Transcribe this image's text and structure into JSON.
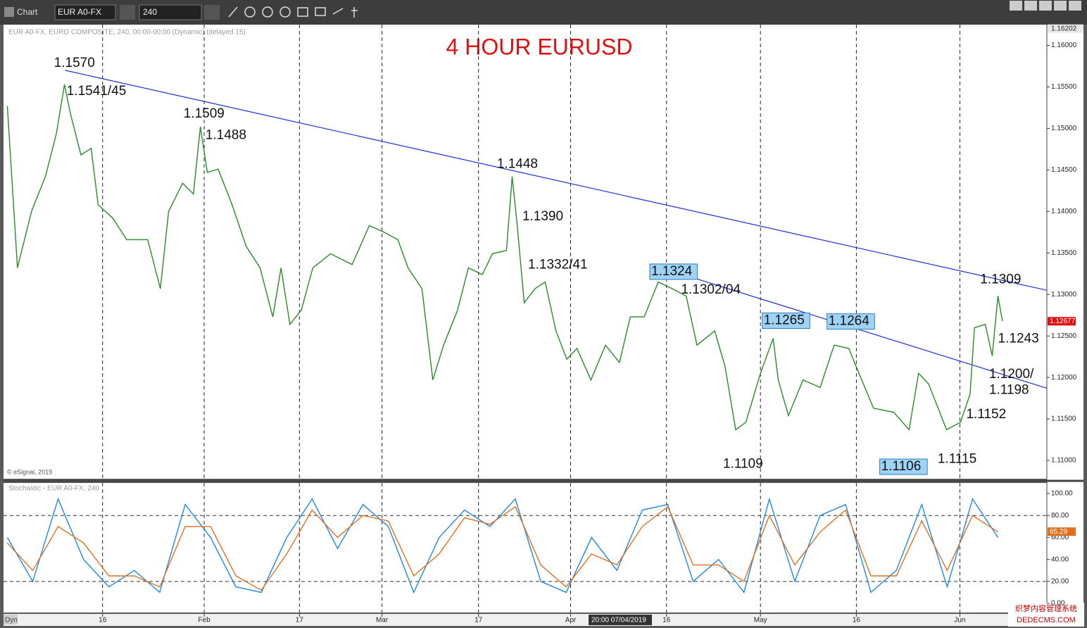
{
  "window": {
    "title": "Chart",
    "symbol": "EUR A0-FX",
    "interval": "240",
    "legend": "EUR A0-FX, EURO COMPOSITE, 240, 00:00-00:00 (Dynamic) (delayed 15)",
    "copyright": "© eSignal, 2019",
    "mode": "Dyn",
    "crosshair_time": "20:00 07/04/2019",
    "watermark": [
      "织梦内容管理系统",
      "DEDECMS.COM"
    ]
  },
  "chart_data": [
    {
      "type": "line",
      "title": "4 HOUR EURUSD",
      "color": "#2a8a2a",
      "x": [
        0,
        1.6,
        3.8,
        6.0,
        7.7,
        9.0,
        9.9,
        11.6,
        13.2,
        14.3,
        16.6,
        18.8,
        22.1,
        24.1,
        25.4,
        27.6,
        29.3,
        30.4,
        31.5,
        33.2,
        35.4,
        37.6,
        39.8,
        41.8,
        43.1,
        44.5,
        46.3,
        48.1,
        50.9,
        54.3,
        57.0,
        59.3,
        61.5,
        63.1,
        65.3,
        67.0,
        68.7,
        70.9,
        72.6,
        74.8,
        76.4,
        78.6,
        79.5,
        80.3,
        81.4,
        83.1,
        84.7,
        86.4,
        88.1,
        89.7,
        91.9,
        94.2,
        96.4,
        98.1,
        100.3,
        102.5,
        104.7,
        106.9,
        108.6,
        111.4,
        113.0,
        114.7,
        116.3,
        118.6,
        120.6,
        121.4,
        123.0,
        125.3,
        128.0,
        130.2,
        132.5,
        134.1,
        136.4,
        139.6,
        142.0,
        143.5,
        145.1,
        147.9,
        150.1,
        151.6,
        152.3,
        154.0,
        155.1,
        156.0,
        156.7
      ],
      "values": [
        1.1527,
        1.1332,
        1.14,
        1.1442,
        1.1493,
        1.1553,
        1.1519,
        1.1468,
        1.1476,
        1.1408,
        1.1392,
        1.1366,
        1.1366,
        1.1307,
        1.14,
        1.1434,
        1.1421,
        1.1502,
        1.1447,
        1.1451,
        1.1408,
        1.1358,
        1.1332,
        1.1273,
        1.1332,
        1.1264,
        1.1281,
        1.1332,
        1.1349,
        1.1336,
        1.1383,
        1.1375,
        1.1366,
        1.1332,
        1.1307,
        1.1197,
        1.1239,
        1.1281,
        1.1332,
        1.1324,
        1.1349,
        1.1353,
        1.1442,
        1.1383,
        1.129,
        1.1307,
        1.1315,
        1.1256,
        1.1222,
        1.1235,
        1.1197,
        1.1239,
        1.1218,
        1.1273,
        1.1273,
        1.1315,
        1.1307,
        1.1298,
        1.1239,
        1.1256,
        1.1214,
        1.1137,
        1.1146,
        1.1205,
        1.1247,
        1.1197,
        1.1154,
        1.1197,
        1.1188,
        1.1239,
        1.1235,
        1.1205,
        1.1163,
        1.1158,
        1.1137,
        1.1205,
        1.1192,
        1.1137,
        1.1146,
        1.118,
        1.126,
        1.1264,
        1.1226,
        1.1298,
        1.1268
      ],
      "xlim": [
        -0.6,
        163.7
      ],
      "xticks": [
        {
          "value": 15,
          "label": "16"
        },
        {
          "value": 31,
          "label": "Feb"
        },
        {
          "value": 46,
          "label": "17"
        },
        {
          "value": 59,
          "label": "Mar"
        },
        {
          "value": 74.2,
          "label": "17"
        },
        {
          "value": 88.7,
          "label": "Apr"
        },
        {
          "value": 103.8,
          "label": "16"
        },
        {
          "value": 118.6,
          "label": "May"
        },
        {
          "value": 133.7,
          "label": "16"
        },
        {
          "value": 150,
          "label": "Jun"
        }
      ],
      "ylim": [
        1.1078,
        1.1625
      ],
      "yticks": [
        {
          "value": 1.11,
          "label": "1.11000"
        },
        {
          "value": 1.115,
          "label": "1.11500"
        },
        {
          "value": 1.12,
          "label": "1.12000"
        },
        {
          "value": 1.125,
          "label": "1.12500"
        },
        {
          "value": 1.13,
          "label": "1.13000"
        },
        {
          "value": 1.135,
          "label": "1.13500"
        },
        {
          "value": 1.14,
          "label": "1.14000"
        },
        {
          "value": 1.145,
          "label": "1.14500"
        },
        {
          "value": 1.15,
          "label": "1.15000"
        },
        {
          "value": 1.155,
          "label": "1.15500"
        },
        {
          "value": 1.16,
          "label": "1.16000"
        }
      ],
      "top_label": {
        "value": 1.16202,
        "label": "1.16202"
      },
      "last": {
        "value": 1.12677,
        "label": "1.12677"
      },
      "trendlines": [
        {
          "color": "#1f2fd8",
          "x": [
            9.1,
            163.7
          ],
          "values": [
            1.157,
            1.1305
          ]
        },
        {
          "color": "#1f2fd8",
          "x": [
            104.7,
            163.7
          ],
          "values": [
            1.1328,
            1.1187
          ]
        }
      ],
      "annotations": [
        {
          "label": "1.1570",
          "x": 7.35,
          "value": 1.157,
          "placement": "above"
        },
        {
          "label": "1.1541/45",
          "x": 9.35,
          "value": 1.1541,
          "placement": "at"
        },
        {
          "label": "1.1509",
          "x": 27.75,
          "value": 1.1509,
          "placement": "above"
        },
        {
          "label": "1.1488",
          "x": 31.2,
          "value": 1.1488,
          "placement": "at"
        },
        {
          "label": "1.1448",
          "x": 77.1,
          "value": 1.1448,
          "placement": "above"
        },
        {
          "label": "1.1390",
          "x": 81.1,
          "value": 1.139,
          "placement": "at"
        },
        {
          "label": "1.1332/41",
          "x": 82.0,
          "value": 1.1332,
          "placement": "at"
        },
        {
          "label": "1.1324",
          "x": 101.4,
          "value": 1.1324,
          "placement": "at",
          "boxed": true
        },
        {
          "label": "1.1302/04",
          "x": 106.1,
          "value": 1.1302,
          "placement": "at"
        },
        {
          "label": "1.1265",
          "x": 119.1,
          "value": 1.1265,
          "placement": "at",
          "boxed": true
        },
        {
          "label": "1.1264",
          "x": 129.3,
          "value": 1.1264,
          "placement": "at",
          "boxed": true
        },
        {
          "label": "1.1309",
          "x": 153.2,
          "value": 1.1309,
          "placement": "above"
        },
        {
          "label": "1.1243",
          "x": 156.0,
          "value": 1.1243,
          "placement": "at"
        },
        {
          "label": "1.1200/",
          "x": 154.6,
          "value": 1.12,
          "placement": "at"
        },
        {
          "label": "1.1198",
          "x": 154.6,
          "value": 1.1198,
          "placement": "below"
        },
        {
          "label": "1.1152",
          "x": 151.0,
          "value": 1.1152,
          "placement": "at"
        },
        {
          "label": "1.1115",
          "x": 146.5,
          "value": 1.1115,
          "placement": "below"
        },
        {
          "label": "1.1106",
          "x": 137.6,
          "value": 1.1106,
          "placement": "below",
          "boxed": true
        },
        {
          "label": "1.1109",
          "x": 112.7,
          "value": 1.1109,
          "placement": "below"
        }
      ]
    },
    {
      "type": "line",
      "title": "Stochastic - EUR A0-FX, 240",
      "x": [
        0,
        4,
        8,
        12,
        16,
        20,
        24,
        28,
        32,
        36,
        40,
        44,
        48,
        52,
        56,
        60,
        64,
        68,
        72,
        76,
        80,
        84,
        88,
        92,
        96,
        100,
        104,
        108,
        112,
        116,
        120,
        124,
        128,
        132,
        136,
        140,
        144,
        148,
        152,
        156
      ],
      "series": [
        {
          "color": "#1e88e5",
          "values": [
            60,
            20,
            95,
            40,
            15,
            30,
            10,
            90,
            60,
            15,
            10,
            60,
            95,
            50,
            90,
            70,
            10,
            60,
            85,
            70,
            95,
            20,
            10,
            60,
            30,
            85,
            90,
            20,
            40,
            10,
            95,
            20,
            80,
            90,
            10,
            30,
            90,
            15,
            95,
            60
          ]
        },
        {
          "color": "#e07020",
          "values": [
            55,
            30,
            70,
            55,
            25,
            25,
            15,
            70,
            70,
            25,
            12,
            45,
            85,
            60,
            80,
            75,
            25,
            45,
            78,
            72,
            88,
            35,
            15,
            45,
            35,
            70,
            88,
            35,
            35,
            20,
            80,
            35,
            65,
            85,
            25,
            25,
            75,
            30,
            80,
            65
          ]
        }
      ],
      "ylim": [
        -8.3,
        109.6
      ],
      "yticks": [
        {
          "value": 0,
          "label": "0.00"
        },
        {
          "value": 20,
          "label": "20.00"
        },
        {
          "value": 40,
          "label": "40.00"
        },
        {
          "value": 60,
          "label": "60.00"
        },
        {
          "value": 80,
          "label": "80.00"
        },
        {
          "value": 100,
          "label": "100.00"
        }
      ],
      "levels": [
        20,
        80
      ],
      "last": {
        "value": 65.29,
        "label": "65.29"
      }
    }
  ]
}
